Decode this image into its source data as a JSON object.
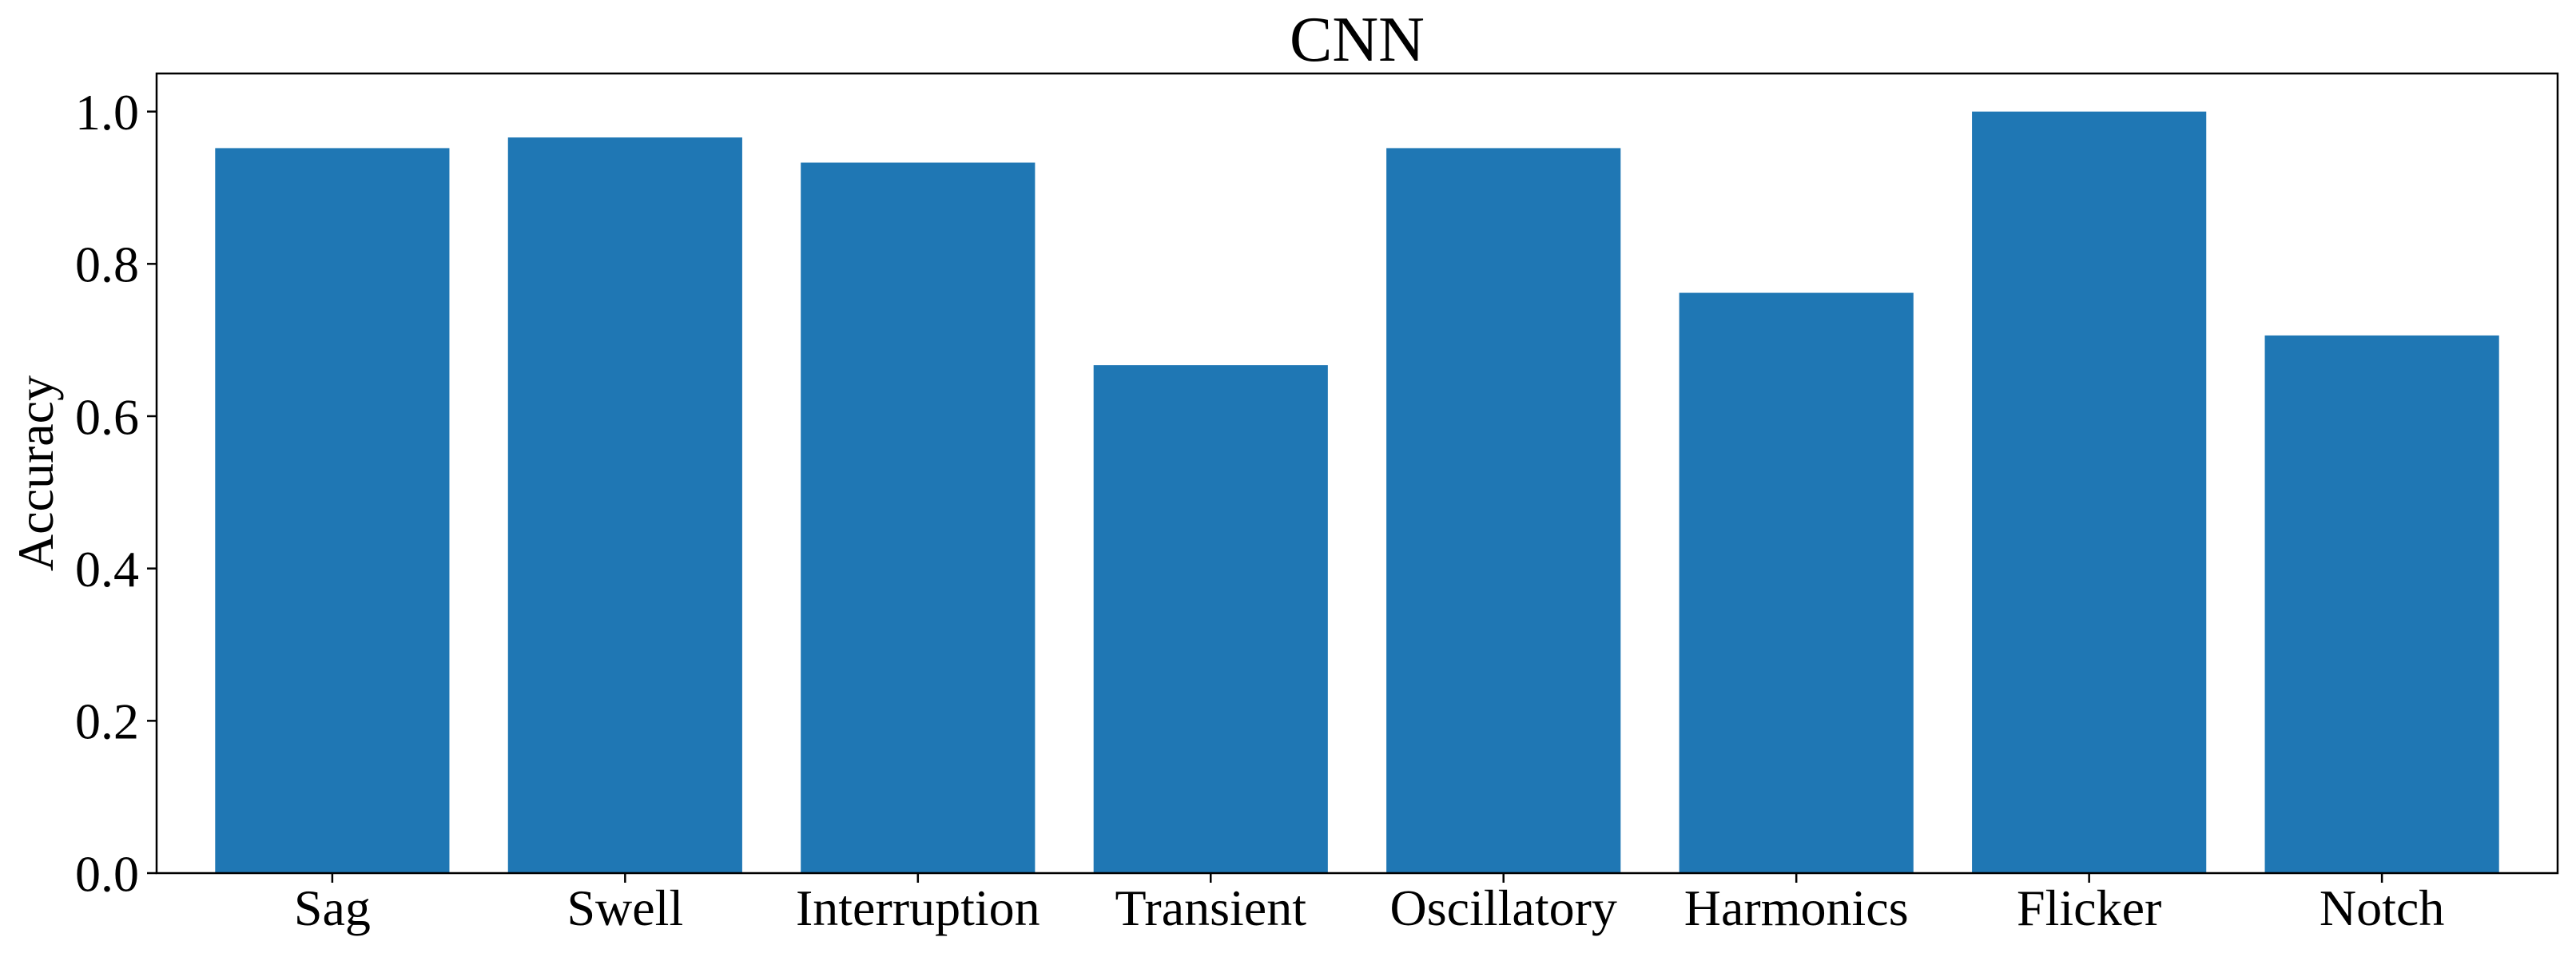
{
  "chart_data": {
    "type": "bar",
    "title": "CNN",
    "xlabel": "",
    "ylabel": "Accuracy",
    "categories": [
      "Sag",
      "Swell",
      "Interruption",
      "Transient",
      "Oscillatory",
      "Harmonics",
      "Flicker",
      "Notch"
    ],
    "values": [
      0.952,
      0.966,
      0.933,
      0.667,
      0.952,
      0.762,
      1.0,
      0.706
    ],
    "ylim": [
      0,
      1.05
    ],
    "yticks": [
      "0.0",
      "0.2",
      "0.4",
      "0.6",
      "0.8",
      "1.0"
    ],
    "bar_color": "#1f77b4",
    "grid": false,
    "legend": "none"
  }
}
